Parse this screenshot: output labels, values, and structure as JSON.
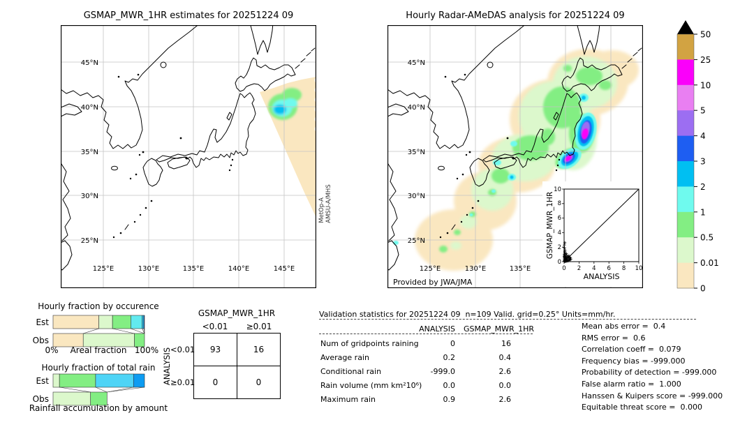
{
  "left_map": {
    "title": "GSMAP_MWR_1HR estimates for 20251224 09",
    "lat_labels": [
      "45°N",
      "40°N",
      "35°N",
      "30°N",
      "25°N"
    ],
    "lon_labels": [
      "125°E",
      "130°E",
      "135°E",
      "140°E",
      "145°E"
    ],
    "satellite_line1": "MetOp-A",
    "satellite_line2": "AMSU-A/MHS"
  },
  "right_map": {
    "title": "Hourly Radar-AMeDAS analysis for 20251224 09",
    "lat_labels": [
      "45°N",
      "40°N",
      "35°N",
      "30°N",
      "25°N"
    ],
    "lon_labels": [
      "125°E",
      "130°E",
      "135°E",
      "140°E",
      "145°E"
    ],
    "credit": "Provided by JWA/JMA",
    "inset": {
      "xlabel": "ANALYSIS",
      "ylabel": "GSMAP_MWR_1HR",
      "xticks": [
        "0",
        "2",
        "4",
        "6",
        "8",
        "10"
      ],
      "yticks": [
        "0",
        "2",
        "4",
        "6",
        "8",
        "10"
      ]
    }
  },
  "colorbar": {
    "ticks": [
      "50",
      "25",
      "10",
      "5",
      "4",
      "3",
      "2",
      "1",
      "0.5",
      "0.01",
      "0"
    ],
    "colors": [
      "#D2A342",
      "#FA00FA",
      "#E97FF2",
      "#9C6EF2",
      "#1E5EF2",
      "#00BFF2",
      "#6FFAEE",
      "#83EE83",
      "#DCF8CC",
      "#FAE7C0"
    ],
    "overflow_color": "#000000",
    "units": "mm/hr"
  },
  "occurrence_chart": {
    "title": "Hourly fraction by occurence",
    "row_labels": [
      "Est",
      "Obs"
    ],
    "x_min_label": "0%",
    "x_axis_label": "Areal fraction",
    "x_max_label": "100%",
    "est_segments": [
      {
        "bin": "0-0.01",
        "fraction": 0.5,
        "color": "#FAE7C0"
      },
      {
        "bin": "0.01-0.5",
        "fraction": 0.15,
        "color": "#DCF8CC"
      },
      {
        "bin": "0.5-1",
        "fraction": 0.2,
        "color": "#83EE83"
      },
      {
        "bin": "1-2",
        "fraction": 0.125,
        "color": "#62EAEF"
      },
      {
        "bin": "2-3",
        "fraction": 0.018,
        "color": "#27BCF2"
      },
      {
        "bin": "3-4",
        "fraction": 0.007,
        "color": "#1464F0"
      }
    ],
    "obs_segments": [
      {
        "bin": "0-0.01",
        "fraction": 0.33,
        "color": "#FAE7C0"
      },
      {
        "bin": "0.01-0.5",
        "fraction": 0.56,
        "color": "#DCF8CC"
      },
      {
        "bin": "0.5-1",
        "fraction": 0.11,
        "color": "#83EE83"
      }
    ]
  },
  "totalrain_chart": {
    "title": "Hourly fraction of total rain",
    "row_labels": [
      "Est",
      "Obs"
    ],
    "x_axis_label": "Rainfall accumulation by amount",
    "est_segments": [
      {
        "bin": "0.01-0.5",
        "fraction": 0.07,
        "color": "#DCF8CC"
      },
      {
        "bin": "0.5-1",
        "fraction": 0.395,
        "color": "#83EE83"
      },
      {
        "bin": "1-2",
        "fraction": 0.415,
        "color": "#4ED4F6"
      },
      {
        "bin": "2-3",
        "fraction": 0.12,
        "color": "#0D9CF2"
      }
    ],
    "obs_segments": [
      {
        "bin": "0.01-0.5",
        "fraction": 0.41,
        "color": "#DCF8CC"
      },
      {
        "bin": "0.5-1",
        "fraction": 0.18,
        "color": "#83EE83"
      }
    ]
  },
  "contingency": {
    "title": "GSMAP_MWR_1HR",
    "col_headers": [
      "<0.01",
      "≥0.01"
    ],
    "row_axis_label": "ANALYSIS",
    "row_headers": [
      "<0.01",
      "≥0.01"
    ],
    "values": [
      [
        "93",
        "16"
      ],
      [
        "0",
        "0"
      ]
    ]
  },
  "stats": {
    "title": "Validation statistics for 20251224 09  n=109 Valid. grid=0.25° Units=mm/hr.",
    "col_headers": [
      "ANALYSIS",
      "GSMAP_MWR_1HR"
    ],
    "rows": [
      {
        "label": "Num of gridpoints raining",
        "analysis": "0",
        "gsmap": "16"
      },
      {
        "label": "Average rain",
        "analysis": "0.2",
        "gsmap": "0.4"
      },
      {
        "label": "Conditional rain",
        "analysis": "-999.0",
        "gsmap": "2.6"
      },
      {
        "label": "Rain volume (mm km²10⁶)",
        "analysis": "0.0",
        "gsmap": "0.0"
      },
      {
        "label": "Maximum rain",
        "analysis": "0.9",
        "gsmap": "2.6"
      }
    ],
    "metrics": [
      "Mean abs error =  0.4",
      "RMS error =  0.6",
      "Correlation coeff =  0.079",
      "Frequency bias = -999.000",
      "Probability of detection = -999.000",
      "False alarm ratio =  1.000",
      "Hanssen & Kuipers score = -999.000",
      "Equitable threat score =  0.000"
    ]
  },
  "chart_data": [
    {
      "id": "left-map",
      "type": "heatmap",
      "title": "GSMAP_MWR_1HR estimates for 20251224 09",
      "units": "mm/hr",
      "extent": {
        "lon": [
          120.3,
          148.5
        ],
        "lat": [
          19.7,
          49.1
        ]
      },
      "levels": [
        0,
        0.01,
        0.5,
        1,
        2,
        3,
        4,
        5,
        10,
        25,
        50
      ],
      "features": [
        {
          "name": "satellite-swath",
          "sensor": "MetOp-A AMSU-A/MHS",
          "note": "triangular swath in NE corner, mostly 0-0.01 mm/hr"
        },
        {
          "name": "rain-cell",
          "lon": 144.8,
          "lat": 39.8,
          "peak_mmhr": 3
        }
      ]
    },
    {
      "id": "right-map",
      "type": "heatmap",
      "title": "Hourly Radar-AMeDAS analysis for 20251224 09",
      "units": "mm/hr",
      "extent": {
        "lon": [
          120.3,
          148.5
        ],
        "lat": [
          19.7,
          49.1
        ]
      },
      "levels": [
        0,
        0.01,
        0.5,
        1,
        2,
        3,
        4,
        5,
        10,
        25,
        50
      ],
      "features": [
        {
          "name": "light-rain-band",
          "note": "SW-NE band 0.01-1 mm/hr from Okinawa across Honshu to Hokkaido"
        },
        {
          "name": "heavy-cell",
          "lon": 142.2,
          "lat": 37.2,
          "peak_mmhr": 25
        },
        {
          "name": "heavy-cell",
          "lon": 140.6,
          "lat": 34.1,
          "peak_mmhr": 25
        }
      ]
    },
    {
      "id": "occurrence-bars",
      "type": "bar",
      "orientation": "horizontal-stacked",
      "title": "Hourly fraction by occurence",
      "xlabel": "Areal fraction",
      "xlim_percent": [
        0,
        100
      ],
      "categories": [
        "Est",
        "Obs"
      ],
      "bins": [
        "0-0.01",
        "0.01-0.5",
        "0.5-1",
        "1-2",
        "2-3",
        "3-4"
      ],
      "series": [
        {
          "name": "Est",
          "values": [
            50,
            15,
            20,
            12.5,
            1.8,
            0.7
          ]
        },
        {
          "name": "Obs",
          "values": [
            33,
            56,
            11,
            0,
            0,
            0
          ]
        }
      ]
    },
    {
      "id": "totalrain-bars",
      "type": "bar",
      "orientation": "horizontal-stacked",
      "title": "Hourly fraction of total rain",
      "xlabel": "Rainfall accumulation by amount",
      "xlim_percent": [
        0,
        100
      ],
      "categories": [
        "Est",
        "Obs"
      ],
      "bins": [
        "0.01-0.5",
        "0.5-1",
        "1-2",
        "2-3"
      ],
      "series": [
        {
          "name": "Est",
          "values": [
            7,
            39.5,
            41.5,
            12
          ]
        },
        {
          "name": "Obs",
          "values": [
            41,
            18,
            0,
            0
          ]
        }
      ]
    },
    {
      "id": "scatter-inset",
      "type": "scatter",
      "xlabel": "ANALYSIS",
      "ylabel": "GSMAP_MWR_1HR",
      "xlim": [
        0,
        10
      ],
      "ylim": [
        0,
        10
      ],
      "identity_line": true,
      "marker": "+",
      "x": [
        0.02,
        0.05,
        0.03,
        0.08,
        0.1,
        0.12,
        0.15,
        0.05,
        0.02,
        0.08,
        0.12,
        0.06,
        0.04,
        0.1,
        0.2,
        0.25,
        0.3,
        0.35,
        0.4,
        0.45,
        0.5,
        0.55,
        0.6,
        0.65,
        0.7,
        0.75,
        0.8,
        0.85,
        0.9,
        0.15,
        0.25,
        0.35,
        0.02,
        0.06,
        0.3,
        0.2,
        0.18,
        0.28,
        0.22,
        0.38,
        0.48,
        0.58,
        0.12,
        0.16,
        0.09
      ],
      "y": [
        0.1,
        0.3,
        0.5,
        0.2,
        0.6,
        0.15,
        0.4,
        0.8,
        1.0,
        1.2,
        1.6,
        1.9,
        2.3,
        2.6,
        0.3,
        0.6,
        0.2,
        0.9,
        0.5,
        0.3,
        0.7,
        0.15,
        0.45,
        0.8,
        0.3,
        0.6,
        0.2,
        0.5,
        0.35,
        0.05,
        0.05,
        0.1,
        0.7,
        0.05,
        1.1,
        0.9,
        0.7,
        0.45,
        0.2,
        0.65,
        0.1,
        0.25,
        0.9,
        1.1,
        1.4
      ]
    },
    {
      "id": "contingency-table",
      "type": "table",
      "title": "GSMAP_MWR_1HR vs ANALYSIS contingency (threshold 0.01 mm/hr)",
      "columns": [
        "<0.01",
        "≥0.01"
      ],
      "rows": [
        "<0.01",
        "≥0.01"
      ],
      "values": [
        [
          93,
          16
        ],
        [
          0,
          0
        ]
      ]
    },
    {
      "id": "validation-statistics",
      "type": "table",
      "title": "Validation statistics for 20251224 09",
      "n": 109,
      "grid_deg": 0.25,
      "units": "mm/hr",
      "analysis": {
        "num_gridpoints_raining": 0,
        "average_rain": 0.2,
        "conditional_rain": -999.0,
        "rain_volume": 0.0,
        "maximum_rain": 0.9
      },
      "gsmap_mwr_1hr": {
        "num_gridpoints_raining": 16,
        "average_rain": 0.4,
        "conditional_rain": 2.6,
        "rain_volume": 0.0,
        "maximum_rain": 2.6
      },
      "scores": {
        "mean_abs_error": 0.4,
        "rms_error": 0.6,
        "correlation_coeff": 0.079,
        "frequency_bias": -999.0,
        "probability_of_detection": -999.0,
        "false_alarm_ratio": 1.0,
        "hanssen_kuipers": -999.0,
        "equitable_threat": 0.0
      }
    }
  ]
}
